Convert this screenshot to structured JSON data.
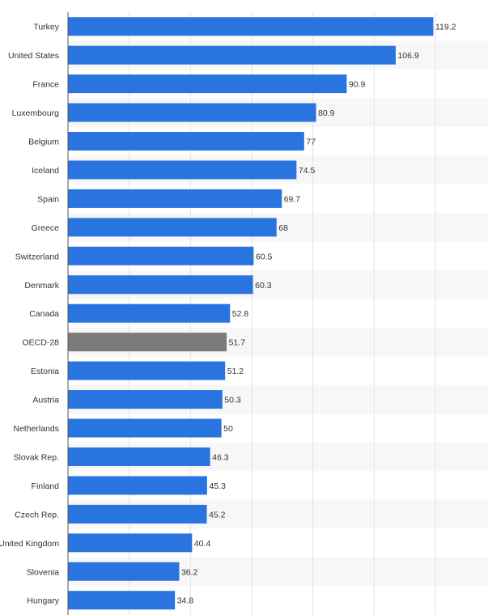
{
  "chart_data": {
    "type": "bar",
    "orientation": "horizontal",
    "title": "",
    "xlabel": "",
    "ylabel": "",
    "xlim": [
      0,
      120
    ],
    "grid": true,
    "legend": "none",
    "categories": [
      "Turkey",
      "United States",
      "France",
      "Luxembourg",
      "Belgium",
      "Iceland",
      "Spain",
      "Greece",
      "Switzerland",
      "Denmark",
      "Canada",
      "OECD-28",
      "Estonia",
      "Austria",
      "Netherlands",
      "Slovak Rep.",
      "Finland",
      "Czech Rep.",
      "United Kingdom",
      "Slovenia",
      "Hungary"
    ],
    "values": [
      119.2,
      106.9,
      90.9,
      80.9,
      77,
      74.5,
      69.7,
      68,
      60.5,
      60.3,
      52.8,
      51.7,
      51.2,
      50.3,
      50,
      46.3,
      45.3,
      45.2,
      40.4,
      36.2,
      34.8
    ],
    "value_labels": [
      "119.2",
      "106.9",
      "90.9",
      "80.9",
      "77",
      "74.5",
      "69.7",
      "68",
      "60.5",
      "60.3",
      "52.8",
      "51.7",
      "51.2",
      "50.3",
      "50",
      "46.3",
      "45.3",
      "45.2",
      "40.4",
      "36.2",
      "34.8"
    ],
    "highlight_category": "OECD-28",
    "colors": {
      "bar": "#2a74df",
      "highlight": "#7b7b7b",
      "stripe": "#f7f7f7",
      "grid": "#e3e3e3",
      "axis": "#555555"
    }
  }
}
